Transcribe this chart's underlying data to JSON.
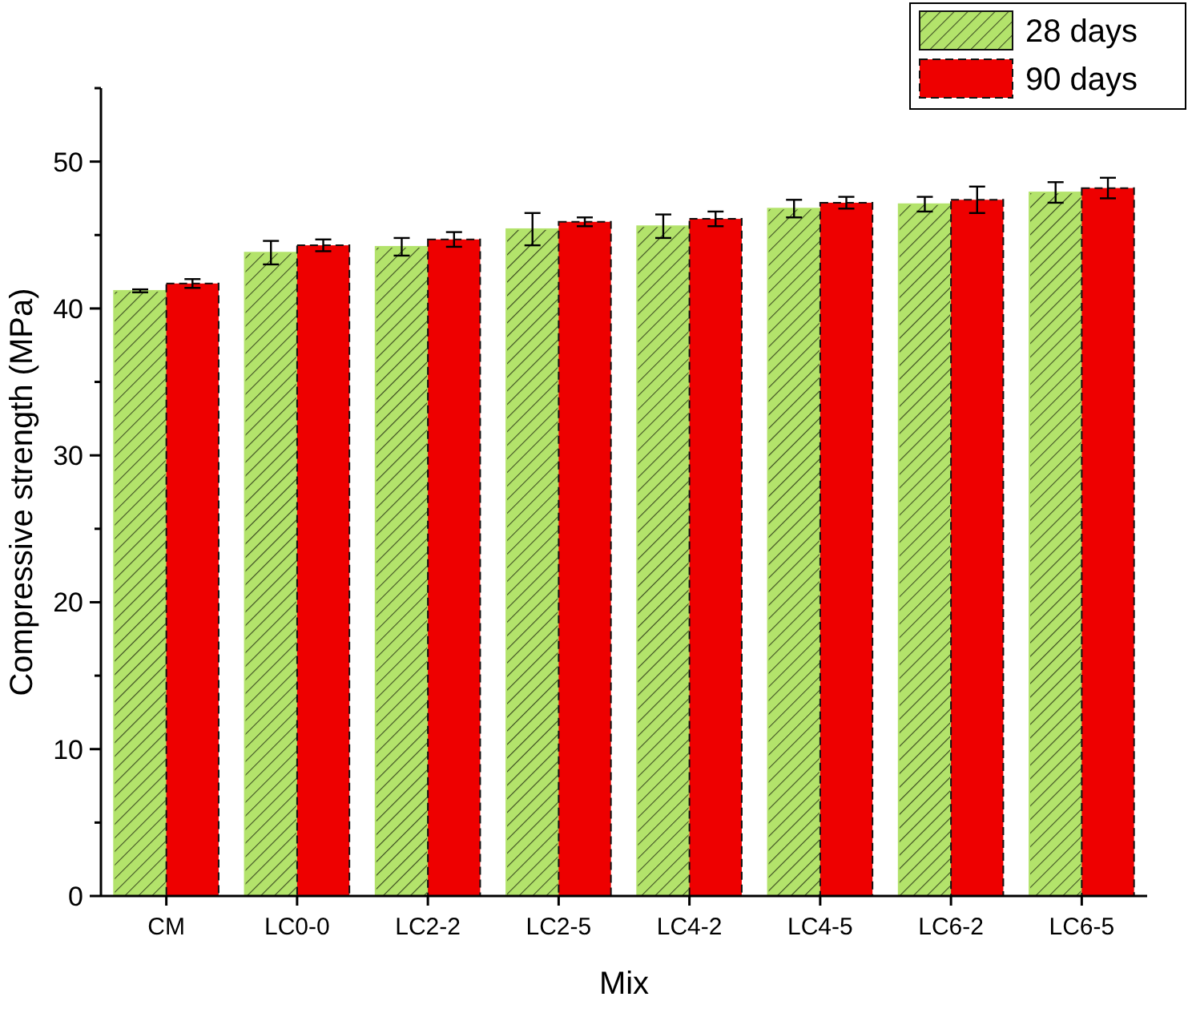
{
  "chart_data": {
    "type": "bar",
    "xlabel": "Mix",
    "ylabel": "Compressive strength (MPa)",
    "categories": [
      "CM",
      "LC0-0",
      "LC2-2",
      "LC2-5",
      "LC4-2",
      "LC4-5",
      "LC6-2",
      "LC6-5"
    ],
    "series": [
      {
        "name": "28 days",
        "color": "#b3e36b",
        "values": [
          41.2,
          43.8,
          44.2,
          45.4,
          45.6,
          46.8,
          47.1,
          47.9
        ],
        "errors": [
          0.1,
          0.8,
          0.6,
          1.1,
          0.8,
          0.6,
          0.5,
          0.7
        ]
      },
      {
        "name": "90 days",
        "color": "#ee0000",
        "values": [
          41.7,
          44.3,
          44.7,
          45.9,
          46.1,
          47.2,
          47.4,
          48.2
        ],
        "errors": [
          0.3,
          0.4,
          0.5,
          0.3,
          0.5,
          0.4,
          0.9,
          0.7
        ]
      }
    ],
    "ylim": [
      0,
      55
    ],
    "yticks": [
      0,
      {
        "value": 5,
        "label": null
      },
      10,
      {
        "value": 15,
        "label": null
      },
      20,
      {
        "value": 25,
        "label": null
      },
      30,
      {
        "value": 35,
        "label": null
      },
      40,
      {
        "value": 45,
        "label": null
      },
      50,
      {
        "value": 55,
        "label": null
      }
    ],
    "legend": "top right",
    "grid": false
  }
}
